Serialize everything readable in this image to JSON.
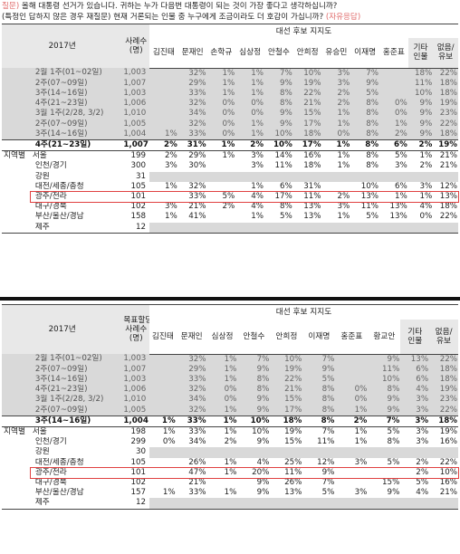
{
  "question": {
    "label": "질문)",
    "line1": "올해 대통령 선거가 있습니다. 귀하는 누가 다음번 대통령이 되는 것이 가장 좋다고 생각하십니까?",
    "line2": "(특정인 답하지 않은 경우 재질문) 현재 거론되는 인물 중 누구에게 조금이라도 더 호감이 가십니까?",
    "line2_suffix": "(자유응답)"
  },
  "table1": {
    "year": "2017년",
    "sample_header": "사례수\n(명)",
    "group_header": "대선 후보 지지도",
    "candidates": [
      "김진태",
      "문재인",
      "손학규",
      "심상정",
      "안철수",
      "안희정",
      "유승민",
      "이재명",
      "홍준표",
      "기타\n인물",
      "없음/\n유보"
    ],
    "rows": [
      {
        "label": "2월 1주(01~02일)",
        "n": "1,003",
        "vals": [
          "",
          "32%",
          "1%",
          "1%",
          "7%",
          "10%",
          "3%",
          "7%",
          "",
          "18%",
          "22%"
        ],
        "style": "gray"
      },
      {
        "label": "2주(07~09일)",
        "n": "1,007",
        "vals": [
          "",
          "29%",
          "1%",
          "1%",
          "9%",
          "19%",
          "3%",
          "9%",
          "",
          "11%",
          "18%"
        ],
        "style": "gray"
      },
      {
        "label": "3주(14~16일)",
        "n": "1,003",
        "vals": [
          "",
          "33%",
          "1%",
          "1%",
          "8%",
          "22%",
          "2%",
          "5%",
          "",
          "10%",
          "18%"
        ],
        "style": "gray"
      },
      {
        "label": "4주(21~23일)",
        "n": "1,006",
        "vals": [
          "",
          "32%",
          "0%",
          "0%",
          "8%",
          "21%",
          "2%",
          "8%",
          "0%",
          "9%",
          "19%"
        ],
        "style": "gray sep"
      },
      {
        "label": "3월 1주(2/28, 3/2)",
        "n": "1,010",
        "vals": [
          "",
          "34%",
          "0%",
          "0%",
          "9%",
          "15%",
          "1%",
          "8%",
          "0%",
          "9%",
          "23%"
        ],
        "style": "gray"
      },
      {
        "label": "2주(07~09일)",
        "n": "1,005",
        "vals": [
          "",
          "32%",
          "0%",
          "1%",
          "9%",
          "17%",
          "1%",
          "8%",
          "1%",
          "9%",
          "22%"
        ],
        "style": "gray"
      },
      {
        "label": "3주(14~16일)",
        "n": "1,004",
        "vals": [
          "1%",
          "33%",
          "0%",
          "1%",
          "10%",
          "18%",
          "0%",
          "8%",
          "2%",
          "9%",
          "18%"
        ],
        "style": "gray"
      },
      {
        "label": "4주(21~23일)",
        "n": "1,007",
        "vals": [
          "2%",
          "31%",
          "1%",
          "2%",
          "10%",
          "17%",
          "1%",
          "8%",
          "6%",
          "2%",
          "19%"
        ],
        "style": "bold"
      },
      {
        "region": "지역별",
        "label": "서울",
        "n": "199",
        "vals": [
          "2%",
          "29%",
          "1%",
          "3%",
          "14%",
          "16%",
          "1%",
          "8%",
          "5%",
          "1%",
          "21%"
        ]
      },
      {
        "label": "인천/경기",
        "n": "300",
        "vals": [
          "3%",
          "30%",
          "",
          "3%",
          "11%",
          "18%",
          "1%",
          "8%",
          "3%",
          "2%",
          "21%"
        ]
      },
      {
        "label": "강원",
        "n": "31",
        "vals": [
          "",
          "",
          "",
          "",
          "",
          "",
          "",
          "",
          "",
          "",
          ""
        ],
        "graycells": [
          0,
          1,
          2,
          3,
          4,
          5,
          6,
          7,
          8,
          9,
          10
        ]
      },
      {
        "label": "대전/세종/충청",
        "n": "105",
        "vals": [
          "1%",
          "32%",
          "",
          "1%",
          "6%",
          "31%",
          "",
          "10%",
          "6%",
          "3%",
          "12%"
        ]
      },
      {
        "label": "광주/전라",
        "n": "101",
        "vals": [
          "",
          "33%",
          "5%",
          "4%",
          "17%",
          "11%",
          "2%",
          "13%",
          "1%",
          "1%",
          "13%"
        ],
        "style": "hl"
      },
      {
        "label": "대구/경북",
        "n": "102",
        "vals": [
          "3%",
          "21%",
          "2%",
          "4%",
          "8%",
          "13%",
          "3%",
          "11%",
          "13%",
          "4%",
          "18%"
        ]
      },
      {
        "label": "부산/울산/경남",
        "n": "158",
        "vals": [
          "1%",
          "41%",
          "",
          "1%",
          "5%",
          "13%",
          "1%",
          "5%",
          "13%",
          "0%",
          "22%"
        ]
      },
      {
        "label": "제주",
        "n": "12",
        "vals": [
          "",
          "",
          "",
          "",
          "",
          "",
          "",
          "",
          "",
          "",
          ""
        ],
        "graycells": [
          0,
          1,
          2,
          3,
          4,
          5,
          6,
          7,
          8,
          9,
          10
        ]
      }
    ]
  },
  "table2": {
    "year": "2017년",
    "sample_header": "목표할당\n사례수\n(명)",
    "group_header": "대선 후보 지지도",
    "candidates": [
      "김진태",
      "문재인",
      "심상정",
      "안철수",
      "안희정",
      "이재명",
      "홍준표",
      "황교안",
      "기타\n인물",
      "없음/\n유보"
    ],
    "rows": [
      {
        "label": "2월 1주(01~02일)",
        "n": "1,003",
        "vals": [
          "",
          "32%",
          "1%",
          "7%",
          "10%",
          "7%",
          "",
          "9%",
          "13%",
          "22%"
        ],
        "style": "gray"
      },
      {
        "label": "2주(07~09일)",
        "n": "1,007",
        "vals": [
          "",
          "29%",
          "1%",
          "9%",
          "19%",
          "9%",
          "",
          "11%",
          "6%",
          "18%"
        ],
        "style": "gray"
      },
      {
        "label": "3주(14~16일)",
        "n": "1,003",
        "vals": [
          "",
          "33%",
          "1%",
          "8%",
          "22%",
          "5%",
          "",
          "10%",
          "6%",
          "18%"
        ],
        "style": "gray"
      },
      {
        "label": "4주(21~23일)",
        "n": "1,006",
        "vals": [
          "",
          "32%",
          "0%",
          "8%",
          "21%",
          "8%",
          "0%",
          "8%",
          "4%",
          "19%"
        ],
        "style": "gray sep"
      },
      {
        "label": "3월 1주(2/28, 3/2)",
        "n": "1,010",
        "vals": [
          "",
          "34%",
          "0%",
          "9%",
          "15%",
          "8%",
          "0%",
          "9%",
          "3%",
          "23%"
        ],
        "style": "gray"
      },
      {
        "label": "2주(07~09일)",
        "n": "1,005",
        "vals": [
          "",
          "32%",
          "1%",
          "9%",
          "17%",
          "8%",
          "1%",
          "9%",
          "3%",
          "22%"
        ],
        "style": "gray"
      },
      {
        "label": "3주(14~16일)",
        "n": "1,004",
        "vals": [
          "1%",
          "33%",
          "1%",
          "10%",
          "18%",
          "8%",
          "2%",
          "7%",
          "3%",
          "18%"
        ],
        "style": "bold"
      },
      {
        "region": "지역별",
        "label": "서울",
        "n": "198",
        "vals": [
          "1%",
          "33%",
          "1%",
          "10%",
          "19%",
          "7%",
          "1%",
          "5%",
          "3%",
          "19%"
        ]
      },
      {
        "label": "인천/경기",
        "n": "299",
        "vals": [
          "0%",
          "34%",
          "2%",
          "9%",
          "15%",
          "11%",
          "1%",
          "8%",
          "3%",
          "16%"
        ]
      },
      {
        "label": "강원",
        "n": "30",
        "vals": [
          "",
          "",
          "",
          "",
          "",
          "",
          "",
          "",
          "",
          ""
        ],
        "graycells": [
          0,
          1,
          2,
          3,
          4,
          5,
          6,
          7,
          8,
          9
        ]
      },
      {
        "label": "대전/세종/충청",
        "n": "105",
        "vals": [
          "",
          "26%",
          "1%",
          "4%",
          "25%",
          "12%",
          "3%",
          "5%",
          "2%",
          "22%"
        ]
      },
      {
        "label": "광주/전라",
        "n": "101",
        "vals": [
          "",
          "47%",
          "1%",
          "20%",
          "11%",
          "9%",
          "",
          "",
          "2%",
          "10%"
        ],
        "style": "hl"
      },
      {
        "label": "대구/경북",
        "n": "102",
        "vals": [
          "",
          "21%",
          "",
          "9%",
          "26%",
          "7%",
          "",
          "15%",
          "5%",
          "16%"
        ]
      },
      {
        "label": "부산/울산/경남",
        "n": "157",
        "vals": [
          "1%",
          "33%",
          "1%",
          "9%",
          "13%",
          "5%",
          "3%",
          "9%",
          "4%",
          "21%"
        ]
      },
      {
        "label": "제주",
        "n": "12",
        "vals": [
          "",
          "",
          "",
          "",
          "",
          "",
          "",
          "",
          "",
          ""
        ],
        "graycells": [
          0,
          1,
          2,
          3,
          4,
          5,
          6,
          7,
          8,
          9
        ]
      }
    ]
  },
  "colors": {
    "gray_row": "#d9d9d9",
    "header": "#e8e8e8",
    "highlight": "#e04040",
    "question_label": "#e06b6b"
  }
}
